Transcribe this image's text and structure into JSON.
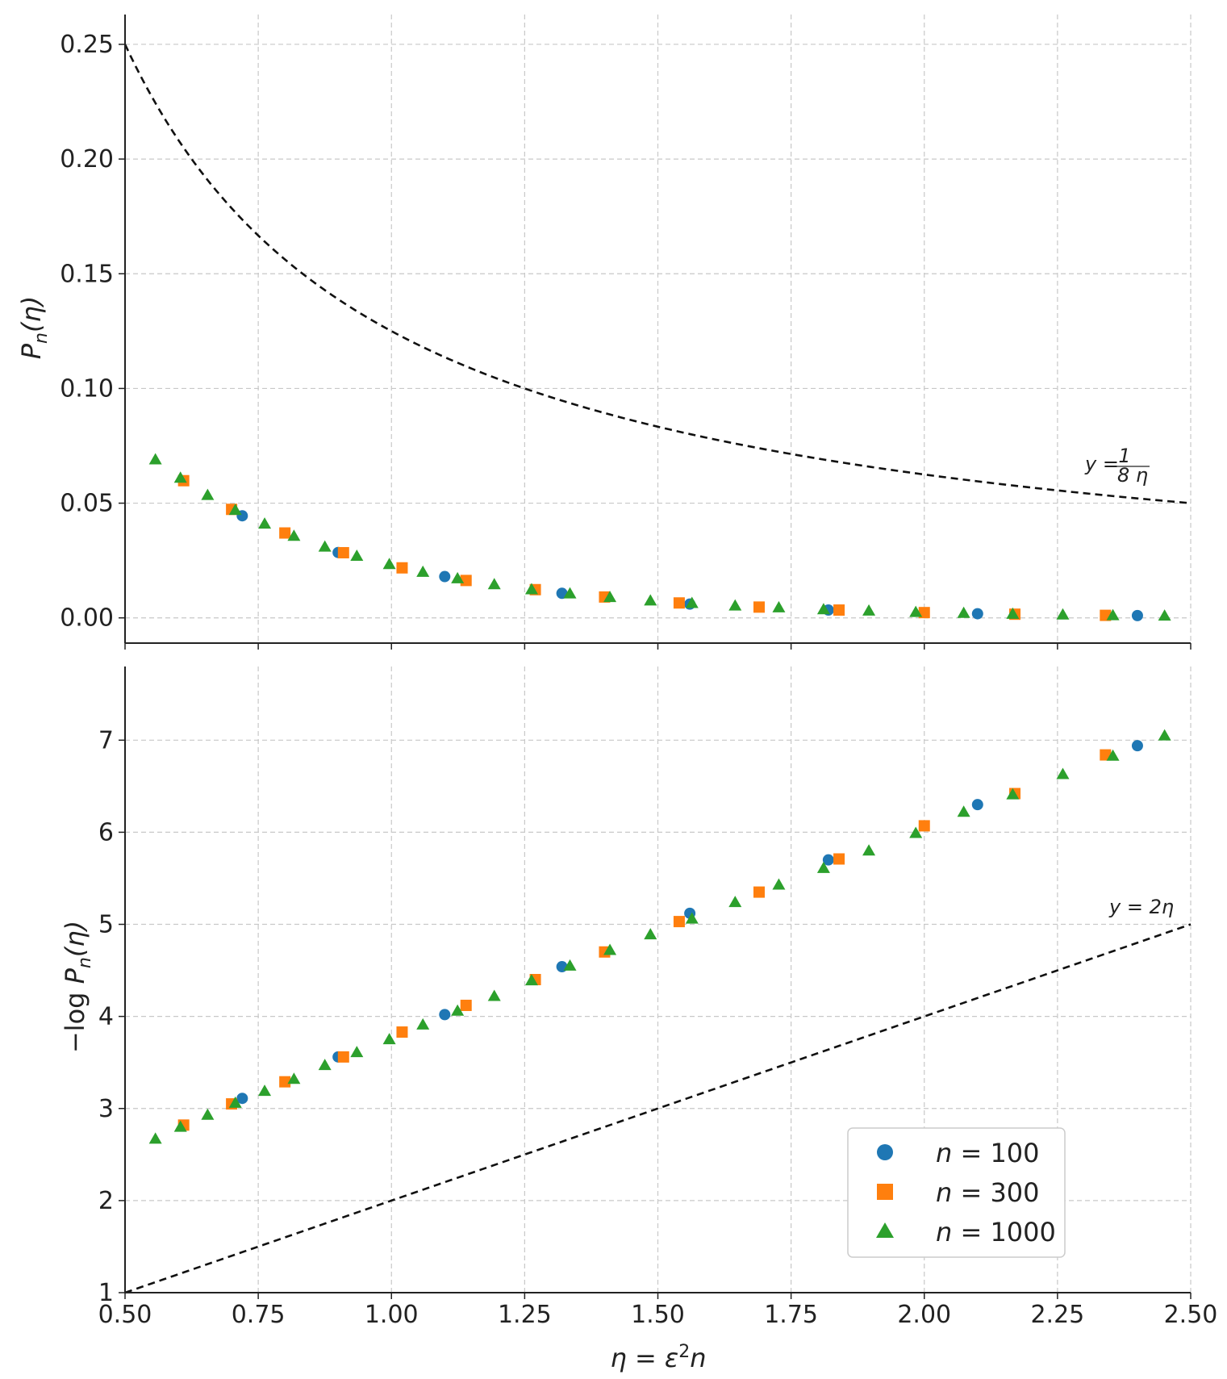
{
  "chart_data": [
    {
      "type": "scatter",
      "panel": "top",
      "ylabel": "P_n(η)",
      "xlim": [
        0.5,
        2.5
      ],
      "ylim": [
        -0.011,
        0.263
      ],
      "x_ticks": [
        "0.50",
        "0.75",
        "1.00",
        "1.25",
        "1.50",
        "1.75",
        "2.00",
        "2.25",
        "2.50"
      ],
      "y_ticks": [
        "0.00",
        "0.05",
        "0.10",
        "0.15",
        "0.20",
        "0.25"
      ],
      "grid": true,
      "reference_curve": {
        "label": "y = 1/(8η)",
        "formula": "1/(8x)"
      },
      "series": [
        {
          "name": "n = 100",
          "marker": "circle",
          "color": "#1f77b4",
          "x": [
            0.72,
            0.9,
            1.1,
            1.32,
            1.56,
            1.82,
            2.1,
            2.4
          ],
          "y": [
            0.0445,
            0.0285,
            0.018,
            0.0107,
            0.006,
            0.0034,
            0.0018,
            0.001
          ]
        },
        {
          "name": "n = 300",
          "marker": "square",
          "color": "#ff7f0e",
          "x": [
            0.61,
            0.7,
            0.8,
            0.91,
            1.02,
            1.14,
            1.27,
            1.4,
            1.54,
            1.69,
            1.84,
            2.0,
            2.17,
            2.34
          ],
          "y": [
            0.0598,
            0.0473,
            0.037,
            0.0284,
            0.0218,
            0.0163,
            0.0123,
            0.0091,
            0.0065,
            0.0047,
            0.0034,
            0.0023,
            0.0016,
            0.0011
          ]
        },
        {
          "name": "n = 1000",
          "marker": "triangle",
          "color": "#2ca02c",
          "x": [
            0.557,
            0.604,
            0.655,
            0.707,
            0.762,
            0.817,
            0.875,
            0.935,
            0.996,
            1.059,
            1.124,
            1.193,
            1.263,
            1.335,
            1.41,
            1.486,
            1.564,
            1.645,
            1.727,
            1.811,
            1.896,
            1.984,
            2.074,
            2.166,
            2.26,
            2.354,
            2.451
          ],
          "y": [
            0.069,
            0.061,
            0.0535,
            0.047,
            0.041,
            0.0357,
            0.031,
            0.027,
            0.0234,
            0.02,
            0.0172,
            0.0146,
            0.0124,
            0.0106,
            0.009,
            0.0075,
            0.0064,
            0.0053,
            0.0045,
            0.0037,
            0.0031,
            0.0025,
            0.0021,
            0.0017,
            0.0014,
            0.0011,
            0.0009
          ]
        }
      ]
    },
    {
      "type": "scatter",
      "panel": "bottom",
      "xlabel": "η = ε²n",
      "ylabel": "−log P_n(η)",
      "xlim": [
        0.5,
        2.5
      ],
      "ylim": [
        1.0,
        7.8
      ],
      "x_ticks": [
        "0.50",
        "0.75",
        "1.00",
        "1.25",
        "1.50",
        "1.75",
        "2.00",
        "2.25",
        "2.50"
      ],
      "y_ticks": [
        "1",
        "2",
        "3",
        "4",
        "5",
        "6",
        "7"
      ],
      "grid": true,
      "legend_position": "lower-right",
      "reference_curve": {
        "label": "y = 2η",
        "formula": "2x"
      },
      "series": [
        {
          "name": "n = 100",
          "marker": "circle",
          "color": "#1f77b4",
          "x": [
            0.72,
            0.9,
            1.1,
            1.32,
            1.56,
            1.82,
            2.1,
            2.4
          ],
          "y": [
            3.11,
            3.56,
            4.02,
            4.54,
            5.12,
            5.7,
            6.3,
            6.94
          ]
        },
        {
          "name": "n = 300",
          "marker": "square",
          "color": "#ff7f0e",
          "x": [
            0.61,
            0.7,
            0.8,
            0.91,
            1.02,
            1.14,
            1.27,
            1.4,
            1.54,
            1.69,
            1.84,
            2.0,
            2.17,
            2.34
          ],
          "y": [
            2.82,
            3.05,
            3.29,
            3.56,
            3.83,
            4.12,
            4.4,
            4.7,
            5.03,
            5.35,
            5.71,
            6.07,
            6.42,
            6.84
          ]
        },
        {
          "name": "n = 1000",
          "marker": "triangle",
          "color": "#2ca02c",
          "x": [
            0.557,
            0.604,
            0.655,
            0.707,
            0.762,
            0.817,
            0.875,
            0.935,
            0.996,
            1.059,
            1.124,
            1.193,
            1.263,
            1.335,
            1.41,
            1.486,
            1.564,
            1.645,
            1.727,
            1.811,
            1.896,
            1.984,
            2.074,
            2.166,
            2.26,
            2.354,
            2.451
          ],
          "y": [
            2.67,
            2.8,
            2.93,
            3.06,
            3.19,
            3.32,
            3.47,
            3.61,
            3.75,
            3.91,
            4.06,
            4.22,
            4.39,
            4.55,
            4.72,
            4.89,
            5.06,
            5.24,
            5.43,
            5.61,
            5.8,
            5.99,
            6.22,
            6.41,
            6.63,
            6.83,
            7.05
          ]
        }
      ]
    }
  ]
}
